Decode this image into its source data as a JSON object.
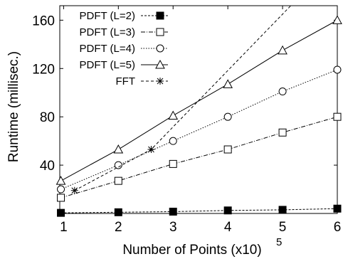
{
  "chart_data": {
    "type": "line",
    "title": "",
    "xlabel": "Number of Points (x10",
    "xlabel_exponent": "5",
    "xlabel_close": ")",
    "ylabel": "Runtime (millisec.)",
    "xlim": [
      0.93,
      6
    ],
    "ylim": [
      0,
      172
    ],
    "xticks": [
      1,
      2,
      3,
      4,
      5,
      6
    ],
    "yticks": [
      40,
      80,
      120,
      160
    ],
    "legend_position": "top-left",
    "grid": false,
    "series": [
      {
        "name": "PDFT (L=2)",
        "marker": "filled-square",
        "dash": "3,2",
        "x": [
          0.95,
          2,
          3,
          4,
          5,
          6
        ],
        "y": [
          0.5,
          1,
          1.5,
          2.5,
          3,
          4
        ]
      },
      {
        "name": "PDFT (L=3)",
        "marker": "open-square",
        "dash": "6,2,1,2",
        "x": [
          0.95,
          2,
          3,
          4,
          5,
          6
        ],
        "y": [
          13,
          27,
          41,
          53,
          67,
          80
        ]
      },
      {
        "name": "PDFT (L=4)",
        "marker": "circle",
        "dash": "1.5,2",
        "x": [
          0.95,
          2,
          3,
          4,
          5,
          6
        ],
        "y": [
          20,
          40,
          60,
          80,
          101,
          119
        ]
      },
      {
        "name": "PDFT (L=5)",
        "marker": "triangle",
        "dash": "",
        "x": [
          0.95,
          2,
          3,
          4,
          5,
          6
        ],
        "y": [
          27,
          53,
          81,
          107,
          135,
          160
        ]
      },
      {
        "name": "FFT",
        "marker": "star",
        "dash": "4,3",
        "x": [
          1.2,
          2.6,
          5.15
        ],
        "y": [
          19,
          53,
          172
        ]
      }
    ]
  }
}
